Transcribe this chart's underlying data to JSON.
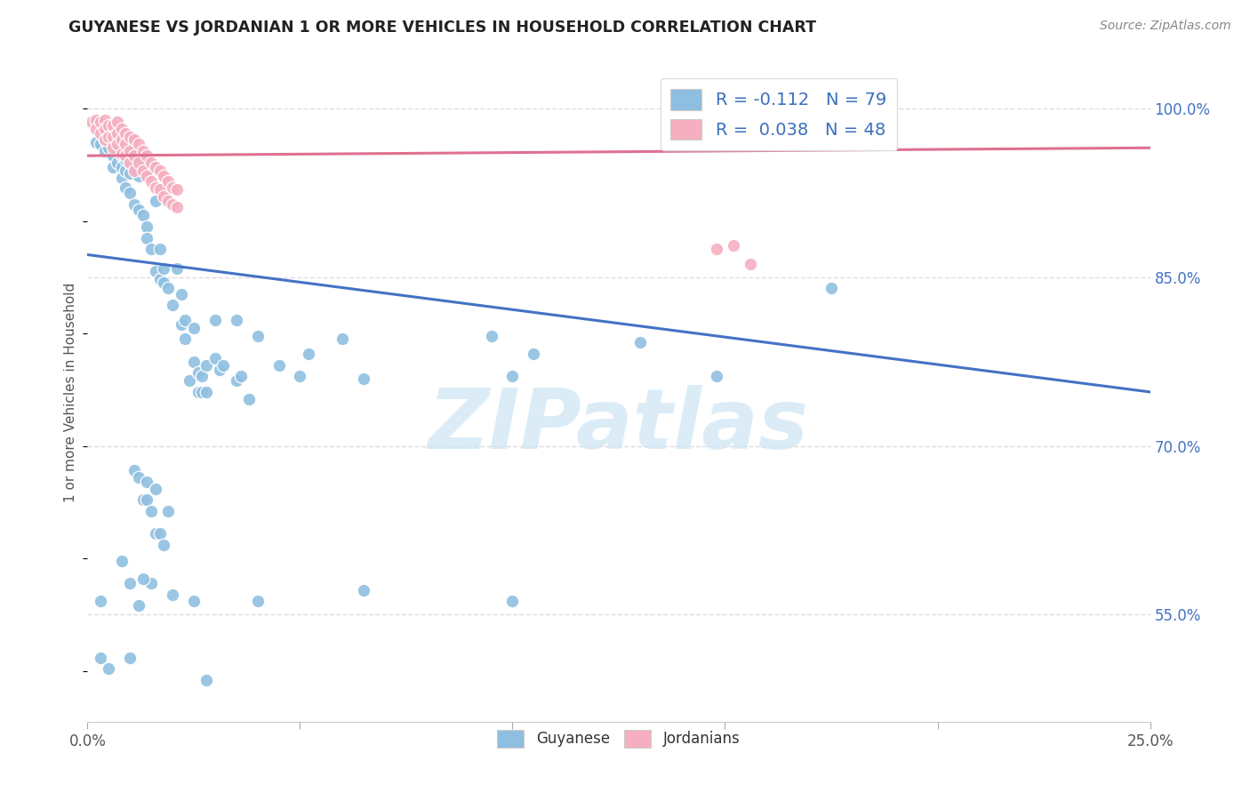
{
  "title": "GUYANESE VS JORDANIAN 1 OR MORE VEHICLES IN HOUSEHOLD CORRELATION CHART",
  "source": "Source: ZipAtlas.com",
  "ylabel": "1 or more Vehicles in Household",
  "y_ticks": [
    "55.0%",
    "70.0%",
    "85.0%",
    "100.0%"
  ],
  "y_tick_vals": [
    0.55,
    0.7,
    0.85,
    1.0
  ],
  "x_min": 0.0,
  "x_max": 0.25,
  "y_min": 0.455,
  "y_max": 1.04,
  "guyanese_color": "#8fbfe0",
  "jordanian_color": "#f5afc0",
  "blue_line_color": "#4472c4",
  "pink_line_color": "#e07090",
  "watermark_text": "ZIPatlas",
  "watermark_color": "#cde5f5",
  "guyanese_points": [
    [
      0.002,
      0.97
    ],
    [
      0.003,
      0.968
    ],
    [
      0.004,
      0.972
    ],
    [
      0.004,
      0.962
    ],
    [
      0.005,
      0.975
    ],
    [
      0.005,
      0.965
    ],
    [
      0.006,
      0.968
    ],
    [
      0.006,
      0.958
    ],
    [
      0.006,
      0.948
    ],
    [
      0.007,
      0.972
    ],
    [
      0.007,
      0.962
    ],
    [
      0.007,
      0.952
    ],
    [
      0.008,
      0.968
    ],
    [
      0.008,
      0.958
    ],
    [
      0.008,
      0.948
    ],
    [
      0.008,
      0.938
    ],
    [
      0.009,
      0.965
    ],
    [
      0.009,
      0.955
    ],
    [
      0.009,
      0.945
    ],
    [
      0.009,
      0.93
    ],
    [
      0.01,
      0.962
    ],
    [
      0.01,
      0.952
    ],
    [
      0.01,
      0.942
    ],
    [
      0.01,
      0.925
    ],
    [
      0.011,
      0.958
    ],
    [
      0.011,
      0.948
    ],
    [
      0.011,
      0.915
    ],
    [
      0.012,
      0.94
    ],
    [
      0.012,
      0.91
    ],
    [
      0.013,
      0.95
    ],
    [
      0.013,
      0.905
    ],
    [
      0.014,
      0.945
    ],
    [
      0.014,
      0.895
    ],
    [
      0.014,
      0.885
    ],
    [
      0.015,
      0.875
    ],
    [
      0.016,
      0.918
    ],
    [
      0.016,
      0.855
    ],
    [
      0.017,
      0.875
    ],
    [
      0.017,
      0.848
    ],
    [
      0.018,
      0.858
    ],
    [
      0.018,
      0.845
    ],
    [
      0.019,
      0.84
    ],
    [
      0.02,
      0.825
    ],
    [
      0.021,
      0.858
    ],
    [
      0.022,
      0.835
    ],
    [
      0.022,
      0.808
    ],
    [
      0.023,
      0.812
    ],
    [
      0.023,
      0.795
    ],
    [
      0.024,
      0.758
    ],
    [
      0.025,
      0.805
    ],
    [
      0.025,
      0.775
    ],
    [
      0.026,
      0.765
    ],
    [
      0.026,
      0.748
    ],
    [
      0.027,
      0.762
    ],
    [
      0.027,
      0.748
    ],
    [
      0.028,
      0.772
    ],
    [
      0.028,
      0.748
    ],
    [
      0.03,
      0.812
    ],
    [
      0.03,
      0.778
    ],
    [
      0.031,
      0.768
    ],
    [
      0.032,
      0.772
    ],
    [
      0.035,
      0.812
    ],
    [
      0.035,
      0.758
    ],
    [
      0.036,
      0.762
    ],
    [
      0.038,
      0.742
    ],
    [
      0.04,
      0.798
    ],
    [
      0.045,
      0.772
    ],
    [
      0.05,
      0.762
    ],
    [
      0.052,
      0.782
    ],
    [
      0.06,
      0.795
    ],
    [
      0.065,
      0.76
    ],
    [
      0.095,
      0.798
    ],
    [
      0.1,
      0.762
    ],
    [
      0.105,
      0.782
    ],
    [
      0.13,
      0.792
    ],
    [
      0.148,
      0.762
    ],
    [
      0.175,
      0.84
    ],
    [
      0.182,
      1.0
    ],
    [
      0.003,
      0.512
    ],
    [
      0.005,
      0.502
    ],
    [
      0.01,
      0.512
    ],
    [
      0.02,
      0.568
    ],
    [
      0.025,
      0.562
    ],
    [
      0.028,
      0.492
    ],
    [
      0.003,
      0.562
    ],
    [
      0.01,
      0.578
    ],
    [
      0.015,
      0.578
    ],
    [
      0.008,
      0.598
    ],
    [
      0.013,
      0.582
    ],
    [
      0.016,
      0.622
    ],
    [
      0.017,
      0.622
    ],
    [
      0.018,
      0.612
    ],
    [
      0.019,
      0.642
    ],
    [
      0.012,
      0.558
    ],
    [
      0.011,
      0.678
    ],
    [
      0.012,
      0.672
    ],
    [
      0.013,
      0.652
    ],
    [
      0.014,
      0.668
    ],
    [
      0.014,
      0.652
    ],
    [
      0.015,
      0.642
    ],
    [
      0.016,
      0.662
    ],
    [
      0.04,
      0.562
    ],
    [
      0.065,
      0.572
    ],
    [
      0.1,
      0.562
    ]
  ],
  "jordanian_points": [
    [
      0.001,
      0.988
    ],
    [
      0.002,
      0.99
    ],
    [
      0.002,
      0.982
    ],
    [
      0.003,
      0.988
    ],
    [
      0.003,
      0.978
    ],
    [
      0.004,
      0.99
    ],
    [
      0.004,
      0.982
    ],
    [
      0.004,
      0.972
    ],
    [
      0.005,
      0.985
    ],
    [
      0.005,
      0.975
    ],
    [
      0.006,
      0.985
    ],
    [
      0.006,
      0.975
    ],
    [
      0.006,
      0.965
    ],
    [
      0.007,
      0.988
    ],
    [
      0.007,
      0.978
    ],
    [
      0.007,
      0.968
    ],
    [
      0.008,
      0.982
    ],
    [
      0.008,
      0.972
    ],
    [
      0.008,
      0.96
    ],
    [
      0.009,
      0.978
    ],
    [
      0.009,
      0.968
    ],
    [
      0.009,
      0.958
    ],
    [
      0.01,
      0.975
    ],
    [
      0.01,
      0.962
    ],
    [
      0.01,
      0.952
    ],
    [
      0.011,
      0.972
    ],
    [
      0.011,
      0.958
    ],
    [
      0.011,
      0.945
    ],
    [
      0.012,
      0.968
    ],
    [
      0.012,
      0.952
    ],
    [
      0.013,
      0.962
    ],
    [
      0.013,
      0.945
    ],
    [
      0.014,
      0.958
    ],
    [
      0.014,
      0.94
    ],
    [
      0.015,
      0.952
    ],
    [
      0.015,
      0.935
    ],
    [
      0.016,
      0.948
    ],
    [
      0.016,
      0.93
    ],
    [
      0.017,
      0.945
    ],
    [
      0.017,
      0.928
    ],
    [
      0.018,
      0.94
    ],
    [
      0.018,
      0.922
    ],
    [
      0.019,
      0.935
    ],
    [
      0.019,
      0.918
    ],
    [
      0.02,
      0.93
    ],
    [
      0.02,
      0.915
    ],
    [
      0.021,
      0.928
    ],
    [
      0.021,
      0.912
    ],
    [
      0.152,
      0.878
    ],
    [
      0.156,
      0.862
    ],
    [
      0.148,
      0.875
    ]
  ],
  "guyanese_line": {
    "x0": 0.0,
    "y0": 0.87,
    "x1": 0.25,
    "y1": 0.748
  },
  "jordanian_line": {
    "x0": 0.0,
    "y0": 0.958,
    "x1": 0.25,
    "y1": 0.965
  }
}
